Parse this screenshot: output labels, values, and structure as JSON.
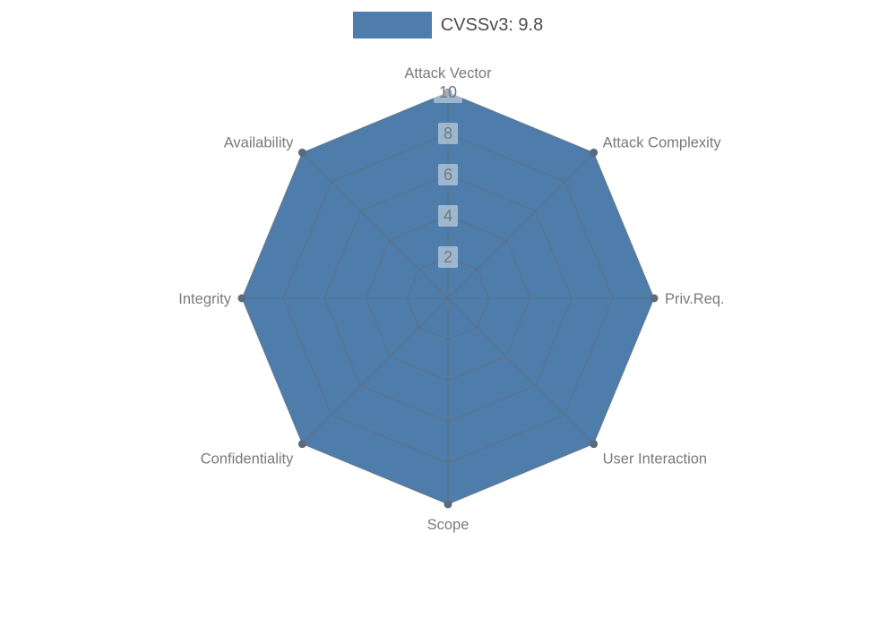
{
  "legend": {
    "label": "CVSSv3: 9.8"
  },
  "chart_data": {
    "type": "radar",
    "categories": [
      "Attack Vector",
      "Attack Complexity",
      "Priv.Req.",
      "User Interaction",
      "Scope",
      "Confidentiality",
      "Integrity",
      "Availability"
    ],
    "series": [
      {
        "name": "CVSSv3: 9.8",
        "values": [
          10,
          10,
          10,
          10,
          10,
          10,
          10,
          10
        ]
      }
    ],
    "ticks": [
      2,
      4,
      6,
      8,
      10
    ],
    "rlim": [
      0,
      10
    ],
    "grid": true,
    "legend_position": "top",
    "fill_color": "#4e7cab",
    "grid_color": "#6b6b60",
    "dot_color": "#5c6b7a",
    "axis_label_color": "#7a7a7a",
    "tick_label_color": "#6f7a82",
    "tick_box_color": "#ffffff"
  }
}
